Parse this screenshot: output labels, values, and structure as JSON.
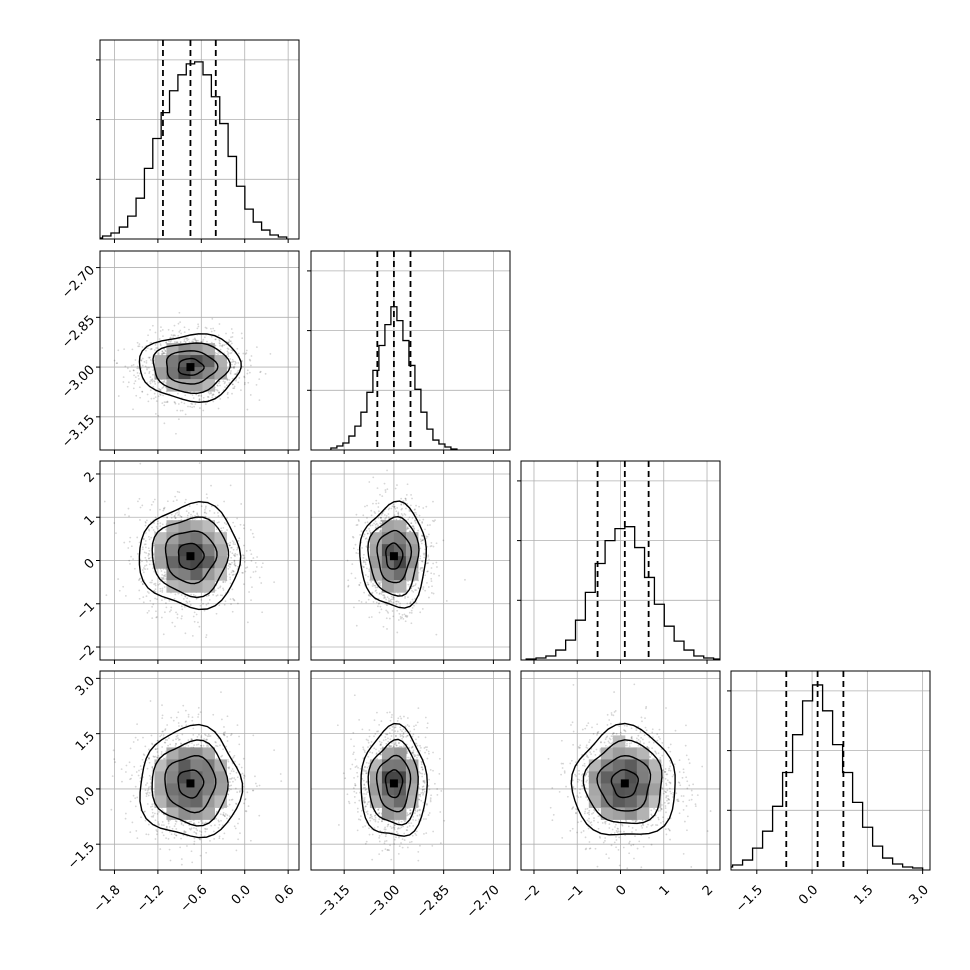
{
  "chart_data": {
    "type": "corner",
    "parameters": 4,
    "axes": [
      {
        "name": "",
        "range": [
          -2.0,
          0.75
        ],
        "ticks": [
          -1.8,
          -1.2,
          -0.6,
          0.0,
          0.6
        ],
        "tick_labels": [
          "−1.8",
          "−1.2",
          "−0.6",
          "0.0",
          "0.6"
        ]
      },
      {
        "name": "",
        "range": [
          -3.25,
          -2.65
        ],
        "ticks": [
          -3.15,
          -3.0,
          -2.85,
          -2.7
        ],
        "tick_labels": [
          "−3.15",
          "−3.00",
          "−2.85",
          "−2.70"
        ]
      },
      {
        "name": "",
        "range": [
          -2.3,
          2.3
        ],
        "ticks": [
          -2,
          -1,
          0,
          1,
          2
        ],
        "tick_labels": [
          "−2",
          "−1",
          "0",
          "1",
          "2"
        ]
      },
      {
        "name": "",
        "range": [
          -2.2,
          3.2
        ],
        "ticks": [
          -1.5,
          0.0,
          1.5,
          3.0
        ],
        "tick_labels": [
          "−1.5",
          "0.0",
          "1.5",
          "3.0"
        ]
      }
    ],
    "quantiles": [
      [
        -1.13,
        -0.75,
        -0.4
      ],
      [
        -3.05,
        -3.0,
        -2.95
      ],
      [
        -0.53,
        0.1,
        0.65
      ],
      [
        -0.7,
        0.15,
        0.85
      ]
    ],
    "means": [
      -0.75,
      -3.0,
      0.1,
      0.15
    ],
    "sigmas": [
      0.35,
      0.05,
      0.6,
      0.75
    ],
    "histograms": [
      [
        0.5,
        1.5,
        3,
        6,
        11.5,
        20.5,
        35.5,
        50.5,
        63.5,
        74.5,
        82.5,
        88,
        89,
        82.5,
        71.5,
        58,
        41.5,
        26.5,
        15,
        8.5,
        4.5,
        2,
        1
      ],
      [
        1,
        2,
        3.5,
        7,
        12,
        19,
        29,
        40,
        52.5,
        63,
        72,
        65,
        55,
        42.5,
        30.5,
        19,
        10.5,
        5,
        3,
        1.5,
        0.5
      ],
      [
        0.5,
        1,
        2,
        5,
        10,
        20,
        34,
        48.5,
        60,
        66,
        67,
        56.5,
        41.5,
        28,
        17,
        9.5,
        5,
        2,
        1,
        0.5
      ],
      [
        1,
        1.5,
        2.5,
        5,
        11,
        19.5,
        32,
        49,
        68,
        85,
        93,
        80,
        63,
        49,
        34,
        21.5,
        12,
        6,
        3,
        1.5,
        1
      ]
    ],
    "contour_levels": [
      "0.5 sigma",
      "1 sigma",
      "1.5 sigma",
      "2 sigma"
    ],
    "grid": true,
    "title": "",
    "legend": "none"
  }
}
